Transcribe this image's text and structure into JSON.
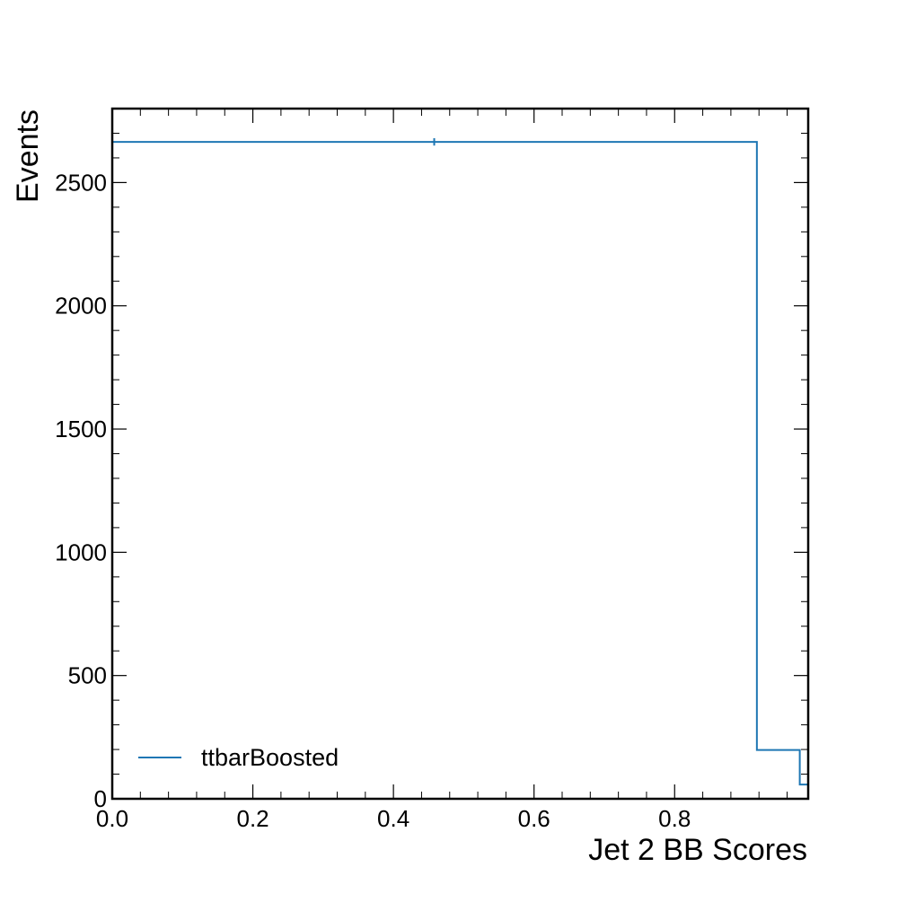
{
  "chart_data": {
    "type": "histogram",
    "title": "",
    "xlabel": "Jet 2 BB Scores",
    "ylabel": "Events",
    "xlim": [
      0.0,
      0.99
    ],
    "ylim": [
      0,
      2800
    ],
    "x_major_ticks": [
      0.0,
      0.2,
      0.4,
      0.6,
      0.8
    ],
    "x_tick_labels": [
      "0.0",
      "0.2",
      "0.4",
      "0.6",
      "0.8"
    ],
    "y_major_ticks": [
      0,
      500,
      1000,
      1500,
      2000,
      2500
    ],
    "y_tick_labels": [
      "0",
      "500",
      "1000",
      "1500",
      "2000",
      "2500"
    ],
    "grid": false,
    "legend_position": "bottom-left",
    "series": [
      {
        "name": "ttbarBoosted",
        "color": "#1f77b4",
        "style": "step",
        "bin_edges": [
          0.0,
          0.917,
          0.978,
          0.99
        ],
        "counts": [
          2665,
          198,
          58
        ],
        "error_bar": {
          "x": 0.458,
          "low": 2650,
          "high": 2680
        }
      }
    ]
  }
}
